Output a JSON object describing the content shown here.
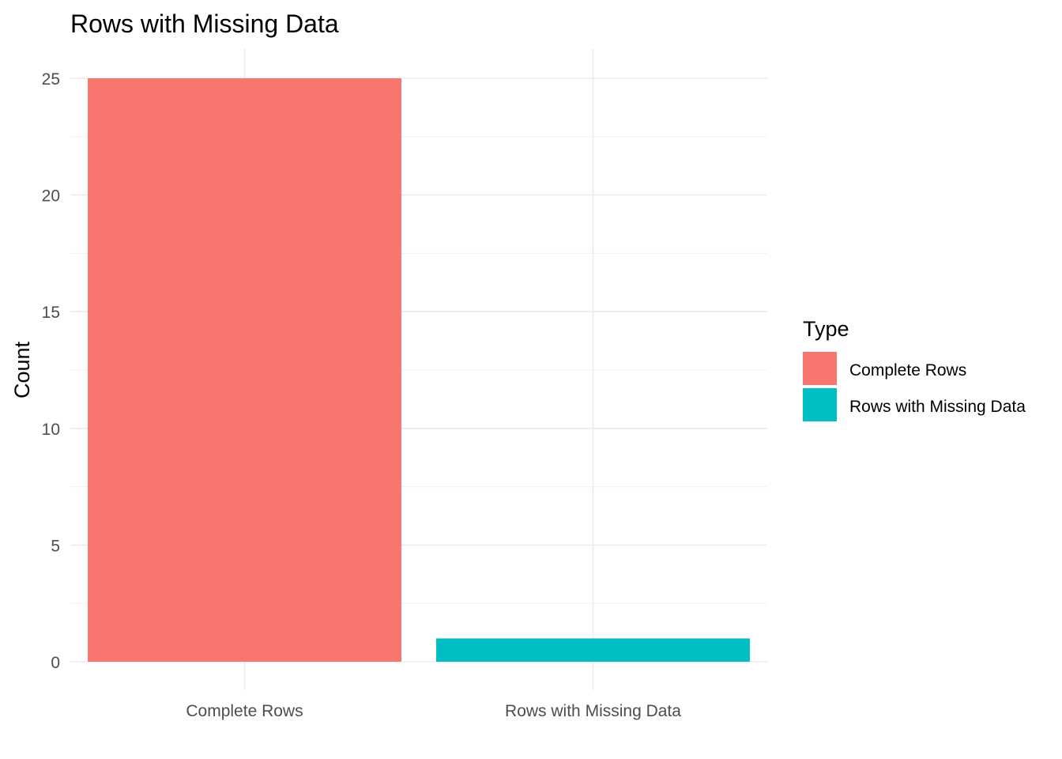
{
  "chart_data": {
    "type": "bar",
    "title": "Rows with Missing Data",
    "xlabel": "",
    "ylabel": "Count",
    "categories": [
      "Complete Rows",
      "Rows with Missing Data"
    ],
    "values": [
      25,
      1
    ],
    "colors": [
      "#F8766D",
      "#00BFC4"
    ],
    "ylim": [
      0,
      26.25
    ],
    "yticks": [
      0,
      5,
      10,
      15,
      20,
      25
    ],
    "grid": true,
    "legend": {
      "title": "Type",
      "placement": "right",
      "entries": [
        "Complete Rows",
        "Rows with Missing Data"
      ]
    }
  }
}
